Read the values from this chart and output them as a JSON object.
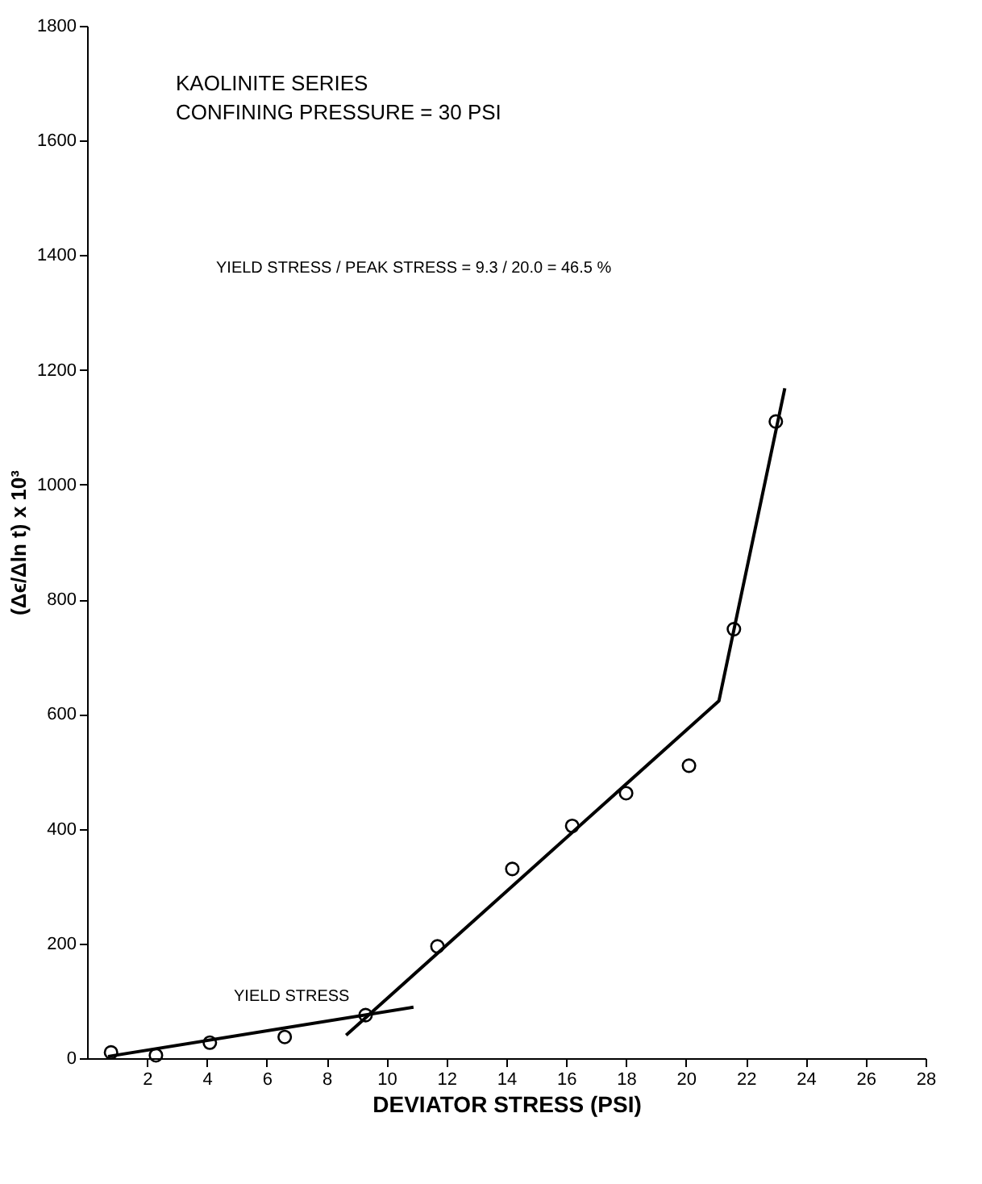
{
  "chart_data": {
    "type": "scatter",
    "title": "KAOLINITE SERIES",
    "subtitle": "CONFINING PRESSURE = 30 PSI",
    "xlabel": "DEVIATOR STRESS (PSI)",
    "ylabel": "(Δϵ/Δln t) x 10³",
    "annotations": [
      "YIELD STRESS / PEAK STRESS = 9.3 / 20.0 = 46.5 %",
      {
        "text": "YIELD STRESS",
        "x": 9.3,
        "y": 75
      }
    ],
    "x": [
      0.8,
      2.3,
      4.1,
      6.6,
      9.3,
      11.7,
      14.2,
      16.2,
      18.0,
      20.1,
      21.6,
      23.0
    ],
    "series": [
      {
        "color": "#000000",
        "marker": "circle",
        "values": [
          10,
          5,
          27,
          37,
          75,
          195,
          330,
          405,
          462,
          510,
          748,
          1110
        ]
      },
      {
        "type": "line",
        "color": "#000000",
        "line_style": "solid",
        "x": [
          0.7,
          10.9
        ],
        "values": [
          3,
          89
        ]
      },
      {
        "type": "line",
        "color": "#000000",
        "line_style": "solid",
        "x": [
          8.65,
          21.1,
          23.3
        ],
        "values": [
          40,
          623,
          1168
        ]
      }
    ],
    "xlim": [
      0,
      28
    ],
    "xticks": [
      2,
      4,
      6,
      8,
      10,
      12,
      14,
      16,
      18,
      20,
      22,
      24,
      26,
      28
    ],
    "ylim": [
      0,
      1800
    ],
    "yticks": [
      0,
      200,
      400,
      600,
      800,
      1000,
      1200,
      1400,
      1600,
      1800
    ],
    "grid": false
  }
}
